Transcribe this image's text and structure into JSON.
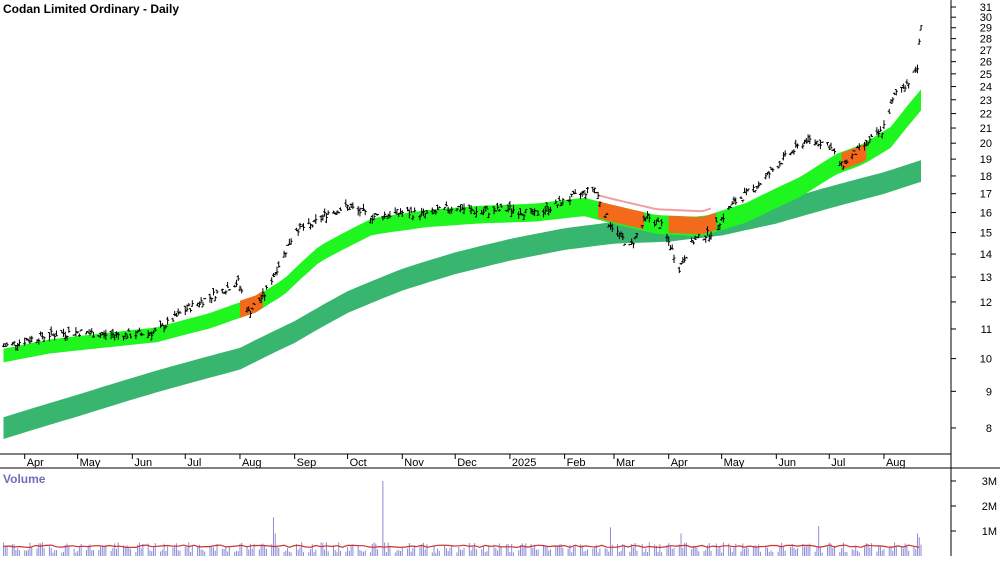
{
  "chart_data": [
    {
      "type": "line",
      "title": "Codan Limited Ordinary - Daily",
      "y_axis": "log scale, right side",
      "ylim": [
        7.5,
        31
      ],
      "y_ticks": [
        8,
        9,
        10,
        11,
        12,
        13,
        14,
        15,
        16,
        17,
        18,
        19,
        20,
        21,
        22,
        23,
        24,
        25,
        26,
        27,
        28,
        29,
        30,
        31
      ],
      "x_ticks": [
        "Apr",
        "May",
        "Jun",
        "Jul",
        "Aug",
        "Sep",
        "Oct",
        "Nov",
        "Dec",
        "2025",
        "Feb",
        "Mar",
        "Apr",
        "May",
        "Jun",
        "Jul",
        "Aug"
      ],
      "grid": false,
      "series": [
        {
          "values": [
            [
              "2024-03-20",
              10.4
            ],
            [
              "2024-04-01",
              10.6
            ],
            [
              "2024-04-15",
              10.8
            ],
            [
              "2024-05-01",
              10.9
            ],
            [
              "2024-05-15",
              10.8
            ],
            [
              "2024-06-01",
              10.8
            ],
            [
              "2024-06-15",
              10.9
            ],
            [
              "2024-07-01",
              11.7
            ],
            [
              "2024-07-15",
              12.2
            ],
            [
              "2024-07-31",
              12.8
            ],
            [
              "2024-08-06",
              11.6
            ],
            [
              "2024-08-15",
              12.3
            ],
            [
              "2024-08-26",
              14.0
            ],
            [
              "2024-09-02",
              15.2
            ],
            [
              "2024-09-10",
              15.3
            ],
            [
              "2024-09-20",
              16.0
            ],
            [
              "2024-10-01",
              16.3
            ],
            [
              "2024-10-15",
              15.8
            ],
            [
              "2024-11-01",
              16.0
            ],
            [
              "2024-11-15",
              15.9
            ],
            [
              "2024-12-01",
              16.3
            ],
            [
              "2024-12-15",
              16.0
            ],
            [
              "2025-01-01",
              16.2
            ],
            [
              "2025-01-15",
              15.9
            ],
            [
              "2025-02-01",
              16.6
            ],
            [
              "2025-02-18",
              17.3
            ],
            [
              "2025-02-26",
              15.5
            ],
            [
              "2025-03-10",
              14.3
            ],
            [
              "2025-03-20",
              15.8
            ],
            [
              "2025-03-28",
              15.3
            ],
            [
              "2025-04-07",
              13.4
            ],
            [
              "2025-04-15",
              14.6
            ],
            [
              "2025-04-25",
              15.0
            ],
            [
              "2025-05-08",
              16.5
            ],
            [
              "2025-05-22",
              17.5
            ],
            [
              "2025-06-05",
              19.0
            ],
            [
              "2025-06-18",
              20.2
            ],
            [
              "2025-06-30",
              20.0
            ],
            [
              "2025-07-08",
              18.6
            ],
            [
              "2025-07-18",
              19.6
            ],
            [
              "2025-07-31",
              20.8
            ],
            [
              "2025-08-08",
              23.6
            ],
            [
              "2025-08-16",
              24.5
            ],
            [
              "2025-08-20",
              25.5
            ],
            [
              "2025-08-22",
              29.5
            ]
          ]
        },
        {
          "values": [
            [
              "2024-03-20",
              10.1
            ],
            [
              "2024-04-15",
              10.4
            ],
            [
              "2024-05-15",
              10.6
            ],
            [
              "2024-06-15",
              10.8
            ],
            [
              "2024-07-15",
              11.3
            ],
            [
              "2024-08-10",
              11.9
            ],
            [
              "2024-08-26",
              12.6
            ],
            [
              "2024-09-15",
              14.0
            ],
            [
              "2024-10-15",
              15.3
            ],
            [
              "2024-11-15",
              15.7
            ],
            [
              "2024-12-15",
              15.9
            ],
            [
              "2025-01-15",
              16.0
            ],
            [
              "2025-02-12",
              16.3
            ],
            [
              "2025-03-01",
              15.9
            ],
            [
              "2025-03-25",
              15.4
            ],
            [
              "2025-04-20",
              15.3
            ],
            [
              "2025-05-15",
              16.0
            ],
            [
              "2025-06-15",
              17.4
            ],
            [
              "2025-07-05",
              18.7
            ],
            [
              "2025-07-20",
              19.3
            ],
            [
              "2025-08-05",
              20.4
            ],
            [
              "2025-08-22",
              23.0
            ]
          ]
        },
        {
          "values": [
            [
              "2024-03-20",
              8.0
            ],
            [
              "2024-05-01",
              8.6
            ],
            [
              "2024-06-15",
              9.3
            ],
            [
              "2024-08-01",
              10.0
            ],
            [
              "2024-09-01",
              10.9
            ],
            [
              "2024-10-01",
              12.0
            ],
            [
              "2024-11-01",
              12.9
            ],
            [
              "2024-12-01",
              13.6
            ],
            [
              "2025-01-01",
              14.2
            ],
            [
              "2025-02-01",
              14.7
            ],
            [
              "2025-03-01",
              15.0
            ],
            [
              "2025-04-01",
              15.1
            ],
            [
              "2025-05-01",
              15.4
            ],
            [
              "2025-06-01",
              16.0
            ],
            [
              "2025-07-01",
              16.8
            ],
            [
              "2025-08-01",
              17.6
            ],
            [
              "2025-08-22",
              18.3
            ]
          ]
        }
      ]
    },
    {
      "type": "bar",
      "title": "Volume",
      "y_ticks": [
        "1M",
        "2M",
        "3M"
      ],
      "ylim": [
        0,
        3200000
      ],
      "avg_volume": 380000,
      "spikes": [
        [
          "2024-08-20",
          1550000
        ],
        [
          "2024-08-21",
          900000
        ],
        [
          "2024-10-21",
          3000000
        ],
        [
          "2025-02-27",
          1150000
        ],
        [
          "2025-04-08",
          900000
        ],
        [
          "2025-06-25",
          1200000
        ],
        [
          "2025-08-20",
          900000
        ],
        [
          "2025-08-21",
          750000
        ]
      ]
    }
  ],
  "colors": {
    "short_ribbon": "#1ff51f",
    "long_ribbon": "#38b56e",
    "bearish_ribbon": "#f26a1a",
    "bearish_line": "#f0a0a0",
    "volume_bar": "#8c8cd6",
    "volume_avg": "#d03030",
    "price_bar": "#000000"
  }
}
